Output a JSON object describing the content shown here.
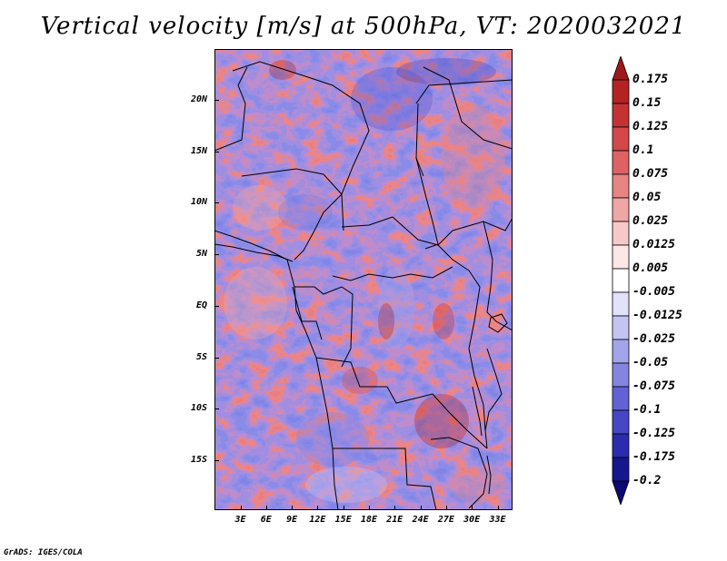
{
  "title": "Vertical velocity [m/s] at 500hPa, VT: 2020032021",
  "credit": "GrADS: IGES/COLA",
  "axes": {
    "lat_labels": [
      "20N",
      "15N",
      "10N",
      "5N",
      "EQ",
      "5S",
      "10S",
      "15S"
    ],
    "lon_labels": [
      "3E",
      "6E",
      "9E",
      "12E",
      "15E",
      "18E",
      "21E",
      "24E",
      "27E",
      "30E",
      "33E"
    ]
  },
  "colorbar": {
    "labels": [
      "0.175",
      "0.15",
      "0.125",
      "0.1",
      "0.075",
      "0.05",
      "0.025",
      "0.0125",
      "0.005",
      "-0.005",
      "-0.0125",
      "-0.025",
      "-0.05",
      "-0.075",
      "-0.1",
      "-0.125",
      "-0.175",
      "-0.2"
    ],
    "colors": [
      "#9e1a1a",
      "#b62222",
      "#c53232",
      "#d44848",
      "#df6262",
      "#e88484",
      "#f1a6a6",
      "#f8c8c8",
      "#fde6e6",
      "#ffffff",
      "#e2e2fb",
      "#c4c4f4",
      "#a4a4ec",
      "#8484e2",
      "#6262d6",
      "#4646c6",
      "#2b2baf",
      "#16168f",
      "#0a0a70"
    ]
  }
}
